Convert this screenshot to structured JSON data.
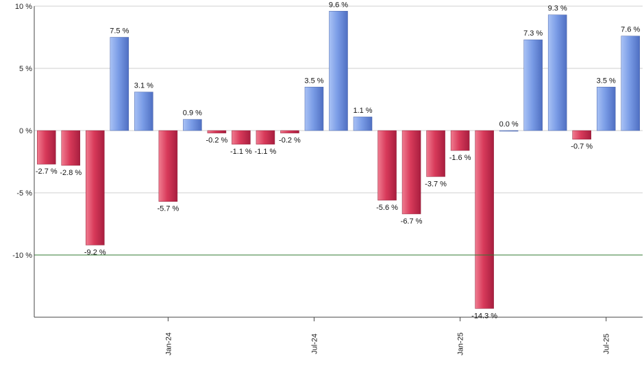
{
  "chart_data": {
    "type": "bar",
    "ylim": [
      -15,
      10
    ],
    "yticks": [
      10,
      5,
      0,
      -5,
      -10
    ],
    "ytick_labels": [
      "10 %",
      "5 %",
      "0 %",
      "-5 %",
      "-10 %"
    ],
    "xtick_labels": [
      "Jan-24",
      "Jul-24",
      "Jan-25",
      "Jul-25"
    ],
    "xtick_positions": [
      5.5,
      11.5,
      17.5,
      23.5
    ],
    "values": [
      -2.7,
      -2.8,
      -9.2,
      7.5,
      3.1,
      -5.7,
      0.9,
      -0.2,
      -1.1,
      -1.1,
      -0.2,
      3.5,
      9.6,
      1.1,
      -5.6,
      -6.7,
      -3.7,
      -1.6,
      -14.3,
      0.0,
      7.3,
      9.3,
      -0.7,
      3.5,
      7.6
    ],
    "labels": [
      "-2.7 %",
      "-2.8 %",
      "-9.2 %",
      "7.5 %",
      "3.1 %",
      "-5.7 %",
      "0.9 %",
      "-0.2 %",
      "-1.1 %",
      "-1.1 %",
      "-0.2 %",
      "3.5 %",
      "9.6 %",
      "1.1 %",
      "-5.6 %",
      "-6.7 %",
      "-3.7 %",
      "-1.6 %",
      "-14.3 %",
      "0.0 %",
      "7.3 %",
      "9.3 %",
      "-0.7 %",
      "3.5 %",
      "7.6 %"
    ],
    "reference_line": -10,
    "grid": true,
    "colors": {
      "positive": "#7A9CE6",
      "negative": "#D83A5A",
      "reference": "#2f7a2f",
      "grid": "#cfcfcf",
      "axis": "#444444"
    }
  }
}
